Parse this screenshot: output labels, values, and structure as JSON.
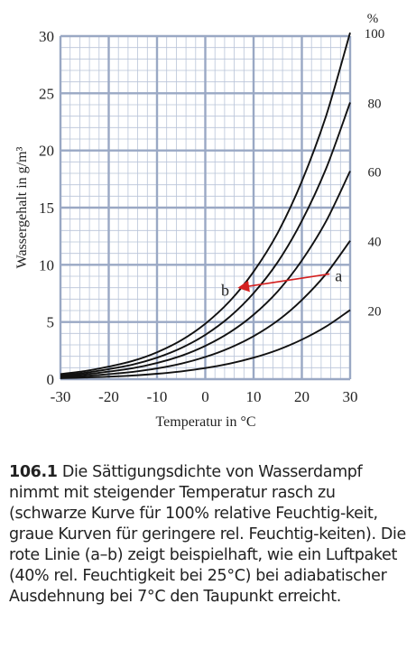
{
  "chart_data": {
    "type": "line",
    "xlabel": "Temperatur in °C",
    "ylabel": "Wassergehalt in g/m³",
    "xlim": [
      -30,
      30
    ],
    "ylim": [
      0,
      30
    ],
    "x_ticks": [
      "-30",
      "-20",
      "-10",
      "0",
      "10",
      "20",
      "30"
    ],
    "y_ticks": [
      "0",
      "5",
      "10",
      "15",
      "20",
      "25",
      "30"
    ],
    "right_axis_unit": "%",
    "right_ticks": [
      "100",
      "80",
      "60",
      "40",
      "20"
    ],
    "grid": true,
    "x": [
      -30,
      -25,
      -20,
      -15,
      -10,
      -5,
      0,
      5,
      10,
      15,
      20,
      25,
      30
    ],
    "series": [
      {
        "name": "100",
        "values": [
          0.45,
          0.7,
          1.1,
          1.6,
          2.35,
          3.4,
          4.85,
          6.8,
          9.4,
          12.8,
          17.3,
          23.0,
          30.3
        ]
      },
      {
        "name": "80",
        "values": [
          0.36,
          0.56,
          0.88,
          1.28,
          1.88,
          2.72,
          3.88,
          5.44,
          7.52,
          10.24,
          13.84,
          18.4,
          24.2
        ]
      },
      {
        "name": "60",
        "values": [
          0.27,
          0.42,
          0.66,
          0.96,
          1.41,
          2.04,
          2.91,
          4.08,
          5.64,
          7.68,
          10.38,
          13.8,
          18.2
        ]
      },
      {
        "name": "40",
        "values": [
          0.18,
          0.28,
          0.44,
          0.64,
          0.94,
          1.36,
          1.94,
          2.72,
          3.76,
          5.12,
          6.92,
          9.2,
          12.1
        ]
      },
      {
        "name": "20",
        "values": [
          0.09,
          0.14,
          0.22,
          0.32,
          0.47,
          0.68,
          0.97,
          1.36,
          1.88,
          2.56,
          3.46,
          4.6,
          6.05
        ]
      }
    ],
    "arrow": {
      "from": {
        "x": 25,
        "y": 9.2
      },
      "to": {
        "x": 7,
        "y": 8.0
      }
    },
    "point_labels": {
      "a": "a",
      "b": "b"
    },
    "colors": {
      "curve": "#111111",
      "grid": "#b9c4d9",
      "arrow": "#d42020"
    }
  },
  "caption": {
    "number": "106.1",
    "text": "Die Sättigungsdichte von Wasserdampf nimmt mit steigender Temperatur rasch zu (schwarze Kurve für 100% relative Feuchtig-keit, graue Kurven für geringere rel. Feuchtig-keiten). Die rote Linie (a–b) zeigt beispielhaft, wie ein Luftpaket (40% rel. Feuchtigkeit bei 25°C) bei adiabatischer Ausdehnung bei 7°C den Taupunkt erreicht."
  }
}
